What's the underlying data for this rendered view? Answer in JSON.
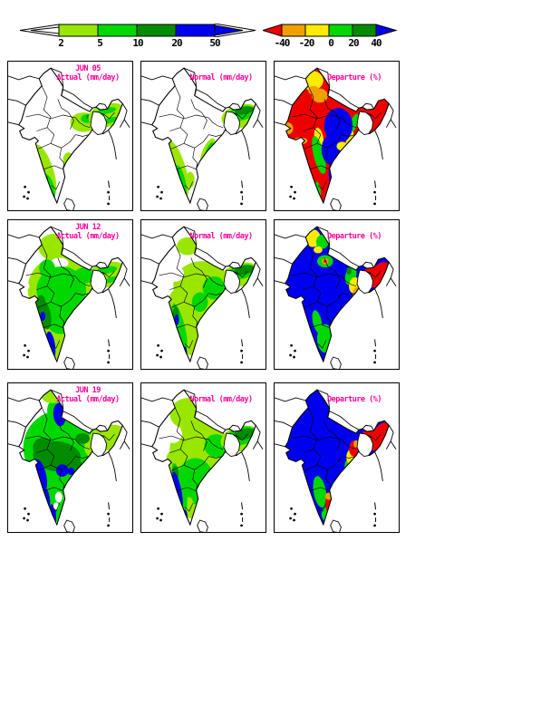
{
  "colors": {
    "white": "#ffffff",
    "yg": "#99e600",
    "grn": "#00d800",
    "dgrn": "#008c00",
    "blu": "#0000f0",
    "red": "#ee0000",
    "org": "#f0a000",
    "yel": "#ffeb00",
    "title": "#ff0099",
    "border": "#000000"
  },
  "legends": {
    "rainfall": {
      "name": "rainfall colour scale (mm/day)",
      "tick_labels": [
        "2",
        "5",
        "10",
        "20",
        "50"
      ],
      "segment_colors": [
        "yg",
        "grn",
        "dgrn",
        "blu"
      ],
      "left_arrow": "white",
      "right_arrow": "blu"
    },
    "departure": {
      "name": "departure colour scale (%)",
      "tick_labels": [
        "-40",
        "-20",
        "0",
        "20",
        "40"
      ],
      "segment_colors": [
        "org",
        "yel",
        "grn",
        "dgrn"
      ],
      "left_arrow": "red",
      "right_arrow": "blu"
    }
  },
  "panels": [
    {
      "date_label": "JUN 05",
      "title": "Actual (mm/day)",
      "base": "white",
      "regions": [
        [
          41,
          121,
          10,
          31,
          -18,
          "yg"
        ],
        [
          46,
          140,
          6,
          16,
          -15,
          "grn"
        ],
        [
          42,
          130,
          3,
          4,
          0,
          "dgrn"
        ],
        [
          50,
          151,
          2.5,
          5,
          0,
          "blu"
        ],
        [
          68,
          108,
          6,
          8,
          0,
          "yg"
        ],
        [
          85,
          66,
          15,
          11,
          0,
          "yg"
        ],
        [
          89,
          62,
          7,
          5,
          0,
          "grn"
        ],
        [
          91,
          60,
          3,
          2.5,
          0,
          "dgrn"
        ],
        [
          112,
          58,
          22,
          13,
          -14,
          "yg"
        ],
        [
          111,
          53,
          11,
          3.5,
          -10,
          "grn"
        ],
        [
          115,
          64,
          9,
          3,
          -18,
          "grn"
        ]
      ]
    },
    {
      "date_label": "",
      "title": "Normal (mm/day)",
      "base": "white",
      "regions": [
        [
          41,
          119,
          9,
          33,
          -16,
          "yg"
        ],
        [
          44,
          134,
          6,
          20,
          -12,
          "grn"
        ],
        [
          40,
          124,
          3,
          5,
          0,
          "dgrn"
        ],
        [
          75,
          99,
          6,
          16,
          24,
          "yg"
        ],
        [
          77,
          97,
          3.5,
          9,
          24,
          "grn"
        ],
        [
          55,
          131,
          5,
          9,
          0,
          "yg"
        ],
        [
          49,
          148,
          2,
          4,
          0,
          "blu"
        ],
        [
          112,
          59,
          22,
          13,
          -14,
          "yg"
        ],
        [
          113,
          56,
          16,
          8,
          -14,
          "grn"
        ],
        [
          116,
          53,
          11,
          4,
          -12,
          "dgrn"
        ],
        [
          109,
          49,
          5,
          3,
          0,
          "dgrn"
        ]
      ]
    },
    {
      "date_label": "",
      "title": "Departure (%)",
      "base": "red",
      "regions": [
        [
          42,
          19,
          13,
          11,
          0,
          "yel"
        ],
        [
          44,
          30,
          6,
          5,
          0,
          "org"
        ],
        [
          51,
          36,
          9,
          8,
          0,
          "org"
        ],
        [
          14,
          73,
          7,
          7,
          0,
          "org"
        ],
        [
          29,
          87,
          8,
          4,
          0,
          "org"
        ],
        [
          50,
          84,
          5,
          12,
          -10,
          "yel"
        ],
        [
          50,
          103,
          6,
          22,
          -14,
          "grn"
        ],
        [
          49,
          143,
          3,
          10,
          -8,
          "grn"
        ],
        [
          89,
          68,
          4,
          12,
          20,
          "grn"
        ],
        [
          85,
          85,
          4,
          9,
          15,
          "yel"
        ],
        [
          72,
          70,
          16,
          20,
          0,
          "blu"
        ],
        [
          64,
          98,
          11,
          17,
          -6,
          "blu"
        ],
        [
          70,
          126,
          9,
          16,
          -5,
          "blu"
        ],
        [
          76,
          93,
          6,
          5,
          0,
          "yel"
        ],
        [
          99,
          60,
          4,
          6,
          0,
          "grn"
        ]
      ]
    },
    {
      "date_label": "JUN 12",
      "title": "Actual (mm/day)",
      "base": "white",
      "regions": [
        [
          52,
          28,
          18,
          15,
          0,
          "yg"
        ],
        [
          62,
          75,
          40,
          38,
          0,
          "yg"
        ],
        [
          57,
          122,
          24,
          32,
          0,
          "yg"
        ],
        [
          112,
          59,
          23,
          14,
          -14,
          "yg"
        ],
        [
          58,
          46,
          10,
          6,
          0,
          "white"
        ],
        [
          16,
          72,
          8,
          6,
          0,
          "white"
        ],
        [
          60,
          76,
          28,
          26,
          0,
          "grn"
        ],
        [
          59,
          108,
          17,
          18,
          0,
          "grn"
        ],
        [
          44,
          52,
          9,
          10,
          0,
          "grn"
        ],
        [
          86,
          60,
          12,
          9,
          0,
          "grn"
        ],
        [
          41,
          104,
          7,
          17,
          -12,
          "dgrn"
        ],
        [
          37,
          90,
          5,
          8,
          0,
          "dgrn"
        ],
        [
          48,
          139,
          5,
          16,
          -8,
          "blu"
        ],
        [
          39,
          106,
          3,
          5,
          0,
          "blu"
        ],
        [
          111,
          54,
          12,
          4,
          -10,
          "grn"
        ],
        [
          116,
          65,
          8,
          3,
          -18,
          "grn"
        ]
      ]
    },
    {
      "date_label": "",
      "title": "Normal (mm/day)",
      "base": "white",
      "regions": [
        [
          52,
          27,
          12,
          10,
          0,
          "yg"
        ],
        [
          68,
          72,
          32,
          28,
          0,
          "yg"
        ],
        [
          57,
          118,
          22,
          32,
          0,
          "yg"
        ],
        [
          40,
          92,
          10,
          16,
          0,
          "yg"
        ],
        [
          38,
          58,
          10,
          9,
          0,
          "white"
        ],
        [
          82,
          74,
          13,
          13,
          0,
          "grn"
        ],
        [
          66,
          90,
          9,
          11,
          0,
          "grn"
        ],
        [
          43,
          118,
          6,
          27,
          -14,
          "grn"
        ],
        [
          39,
          103,
          3.5,
          8,
          0,
          "dgrn"
        ],
        [
          40,
          110,
          2.5,
          6,
          0,
          "blu"
        ],
        [
          49,
          147,
          2.5,
          7,
          0,
          "blu"
        ],
        [
          112,
          59,
          22,
          13,
          -14,
          "yg"
        ],
        [
          113,
          56,
          16,
          8,
          -14,
          "grn"
        ],
        [
          116,
          54,
          12,
          5,
          -12,
          "dgrn"
        ]
      ]
    },
    {
      "date_label": "",
      "title": "Departure (%)",
      "base": "blu",
      "regions": [
        [
          43,
          18,
          9,
          10,
          0,
          "yel"
        ],
        [
          54,
          22,
          7,
          8,
          0,
          "grn"
        ],
        [
          49,
          31,
          5,
          4,
          0,
          "yel"
        ],
        [
          57,
          44,
          9,
          7,
          0,
          "grn"
        ],
        [
          57,
          44,
          4,
          3.5,
          0,
          "org"
        ],
        [
          57,
          44,
          1.8,
          1.6,
          0,
          "red"
        ],
        [
          86,
          60,
          6,
          11,
          15,
          "grn"
        ],
        [
          84,
          55,
          3,
          4,
          0,
          "dgrn"
        ],
        [
          90,
          71,
          6,
          9,
          10,
          "yel"
        ],
        [
          93,
          81,
          5,
          8,
          5,
          "org"
        ],
        [
          114,
          61,
          19,
          12,
          -14,
          "red"
        ],
        [
          123,
          51,
          8,
          6,
          0,
          "red"
        ],
        [
          48,
          112,
          5,
          13,
          -12,
          "grn"
        ],
        [
          57,
          131,
          9,
          16,
          0,
          "grn"
        ],
        [
          63,
          148,
          5,
          7,
          0,
          "grn"
        ]
      ]
    },
    {
      "date_label": "JUN 19",
      "title": "Actual (mm/day)",
      "base": "white",
      "regions": [
        [
          60,
          70,
          43,
          42,
          0,
          "grn"
        ],
        [
          56,
          118,
          28,
          36,
          0,
          "grn"
        ],
        [
          55,
          28,
          11,
          14,
          0,
          "grn"
        ],
        [
          50,
          13,
          12,
          7,
          0,
          "yg"
        ],
        [
          112,
          59,
          23,
          14,
          -14,
          "yg"
        ],
        [
          95,
          70,
          9,
          11,
          0,
          "yg"
        ],
        [
          70,
          124,
          8,
          11,
          0,
          "yg"
        ],
        [
          55,
          80,
          27,
          17,
          5,
          "dgrn"
        ],
        [
          39,
          70,
          11,
          11,
          0,
          "dgrn"
        ],
        [
          72,
          92,
          13,
          9,
          0,
          "dgrn"
        ],
        [
          84,
          60,
          8,
          6,
          0,
          "dgrn"
        ],
        [
          58,
          33,
          7,
          13,
          -5,
          "blu"
        ],
        [
          36,
          102,
          7,
          19,
          -12,
          "blu"
        ],
        [
          42,
          128,
          5,
          14,
          -8,
          "blu"
        ],
        [
          61,
          96,
          7,
          7,
          0,
          "blu"
        ],
        [
          71,
          97,
          4,
          4,
          0,
          "blu"
        ],
        [
          50,
          146,
          4,
          12,
          -5,
          "blu"
        ],
        [
          57,
          126,
          4,
          6,
          0,
          "white"
        ],
        [
          54,
          136,
          3,
          4,
          0,
          "white"
        ]
      ]
    },
    {
      "date_label": "",
      "title": "Normal (mm/day)",
      "base": "white",
      "regions": [
        [
          54,
          32,
          22,
          18,
          0,
          "yg"
        ],
        [
          66,
          72,
          34,
          30,
          0,
          "yg"
        ],
        [
          56,
          118,
          22,
          32,
          0,
          "yg"
        ],
        [
          38,
          84,
          10,
          12,
          0,
          "yg"
        ],
        [
          36,
          55,
          10,
          10,
          0,
          "white"
        ],
        [
          61,
          108,
          21,
          26,
          0,
          "grn"
        ],
        [
          84,
          68,
          13,
          13,
          0,
          "grn"
        ],
        [
          54,
          136,
          5,
          10,
          0,
          "yg"
        ],
        [
          43,
          114,
          6,
          27,
          -14,
          "grn"
        ],
        [
          38,
          100,
          4,
          9,
          0,
          "dgrn"
        ],
        [
          41,
          118,
          4,
          21,
          -12,
          "blu"
        ],
        [
          49,
          148,
          3,
          8,
          0,
          "blu"
        ],
        [
          112,
          60,
          23,
          14,
          -14,
          "yg"
        ],
        [
          113,
          57,
          18,
          10,
          -14,
          "grn"
        ],
        [
          116,
          55,
          13,
          6,
          -12,
          "dgrn"
        ]
      ]
    },
    {
      "date_label": "",
      "title": "Departure (%)",
      "base": "blu",
      "regions": [
        [
          114,
          60,
          20,
          13,
          -14,
          "red"
        ],
        [
          124,
          49,
          8,
          7,
          0,
          "red"
        ],
        [
          84,
          90,
          5,
          8,
          10,
          "grn"
        ],
        [
          87,
          80,
          6,
          9,
          8,
          "yel"
        ],
        [
          90,
          71,
          6,
          9,
          5,
          "red"
        ],
        [
          92,
          66,
          3,
          4,
          0,
          "org"
        ],
        [
          51,
          120,
          7,
          18,
          -10,
          "grn"
        ],
        [
          59,
          145,
          6,
          9,
          0,
          "grn"
        ],
        [
          69,
          145,
          5,
          7,
          0,
          "grn"
        ],
        [
          63,
          133,
          6,
          11,
          0,
          "red"
        ],
        [
          61,
          125,
          4,
          4,
          0,
          "org"
        ],
        [
          65,
          123,
          3,
          3,
          0,
          "yel"
        ]
      ]
    }
  ]
}
